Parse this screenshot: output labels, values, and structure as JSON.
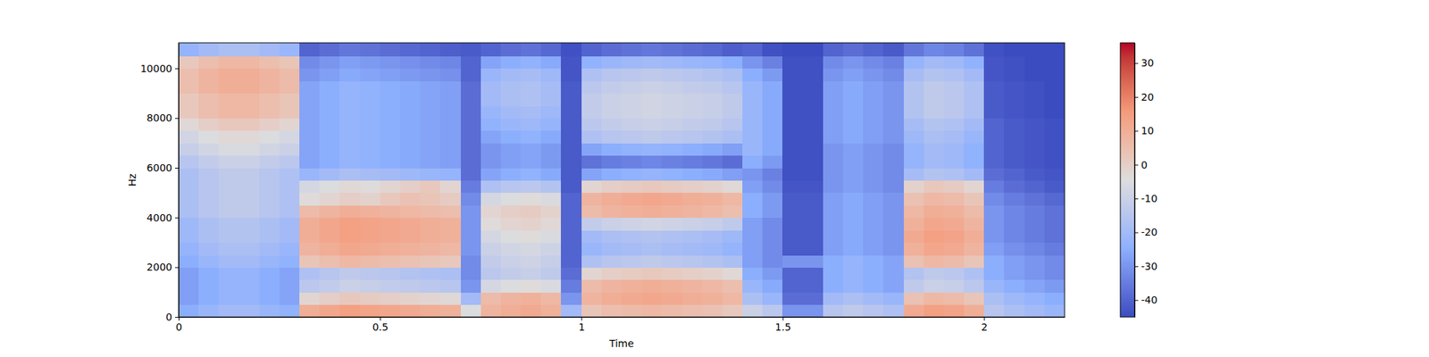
{
  "chart_data": {
    "type": "heatmap",
    "x_label": "Time",
    "y_label": "Hz",
    "xlim": [
      0,
      2.2
    ],
    "ylim": [
      0,
      11025
    ],
    "xticks": [
      0,
      0.5,
      1,
      1.5,
      2
    ],
    "yticks": [
      0,
      2000,
      4000,
      6000,
      8000,
      10000
    ],
    "x_edges": [
      0,
      0.05,
      0.1,
      0.15,
      0.2,
      0.25,
      0.3,
      0.35,
      0.4,
      0.45,
      0.5,
      0.55,
      0.6,
      0.65,
      0.7,
      0.75,
      0.8,
      0.85,
      0.9,
      0.95,
      1,
      1.05,
      1.1,
      1.15,
      1.2,
      1.25,
      1.3,
      1.35,
      1.4,
      1.45,
      1.5,
      1.55,
      1.6,
      1.65,
      1.7,
      1.75,
      1.8,
      1.85,
      1.9,
      1.95,
      2,
      2.05,
      2.1,
      2.15,
      2.2
    ],
    "y_edges": [
      0,
      500,
      1000,
      1500,
      2000,
      2500,
      3000,
      3500,
      4000,
      4500,
      5000,
      5500,
      6000,
      6500,
      7000,
      7500,
      8000,
      8500,
      9000,
      9500,
      10000,
      10500,
      11025
    ],
    "z": [
      [
        -25,
        -22,
        -20,
        -20,
        -22,
        -24,
        10,
        12,
        14,
        13,
        12,
        11,
        10,
        9,
        -5,
        8,
        10,
        11,
        9,
        -20,
        3,
        5,
        6,
        7,
        6,
        5,
        4,
        2,
        -10,
        -14,
        -30,
        -30,
        -15,
        -13,
        -15,
        -17,
        11,
        14,
        13,
        10,
        -15,
        -18,
        -20,
        -22
      ],
      [
        -28,
        -25,
        -23,
        -23,
        -25,
        -27,
        -2,
        0,
        2,
        1,
        0,
        -1,
        -2,
        -3,
        -20,
        6,
        8,
        9,
        7,
        -30,
        8,
        10,
        11,
        12,
        11,
        10,
        9,
        7,
        -18,
        -22,
        -38,
        -38,
        -20,
        -18,
        -20,
        -22,
        4,
        7,
        6,
        3,
        -18,
        -21,
        -23,
        -25
      ],
      [
        -28,
        -25,
        -23,
        -23,
        -25,
        -27,
        -14,
        -12,
        -10,
        -11,
        -12,
        -13,
        -14,
        -15,
        -30,
        -7,
        -5,
        -4,
        -6,
        -35,
        6,
        8,
        9,
        10,
        9,
        8,
        7,
        5,
        -22,
        -26,
        -40,
        -40,
        -25,
        -23,
        -25,
        -27,
        -13,
        -10,
        -11,
        -14,
        -22,
        -25,
        -27,
        -29
      ],
      [
        -28,
        -25,
        -23,
        -23,
        -25,
        -27,
        -17,
        -15,
        -13,
        -14,
        -15,
        -16,
        -17,
        -18,
        -32,
        -14,
        -12,
        -11,
        -13,
        -38,
        -2,
        0,
        1,
        2,
        1,
        0,
        -1,
        -3,
        -25,
        -29,
        -40,
        -40,
        -25,
        -23,
        -25,
        -27,
        -16,
        -13,
        -14,
        -17,
        -25,
        -28,
        -30,
        -32
      ],
      [
        -25,
        -22,
        -20,
        -20,
        -22,
        -24,
        3,
        5,
        7,
        6,
        5,
        4,
        3,
        2,
        -32,
        -12,
        -10,
        -9,
        -11,
        -40,
        -17,
        -15,
        -14,
        -13,
        -14,
        -15,
        -16,
        -18,
        -28,
        -32,
        -30,
        -30,
        -25,
        -23,
        -25,
        -27,
        4,
        7,
        6,
        3,
        -25,
        -28,
        -30,
        -32
      ],
      [
        -23,
        -20,
        -18,
        -18,
        -20,
        -22,
        8,
        10,
        12,
        11,
        10,
        9,
        8,
        7,
        -30,
        -10,
        -8,
        -7,
        -9,
        -40,
        -22,
        -20,
        -19,
        -18,
        -19,
        -20,
        -21,
        -23,
        -28,
        -32,
        -42,
        -42,
        -28,
        -26,
        -28,
        -30,
        9,
        12,
        11,
        8,
        -28,
        -31,
        -33,
        -35
      ],
      [
        -21,
        -18,
        -16,
        -16,
        -18,
        -20,
        10,
        12,
        14,
        13,
        12,
        11,
        10,
        9,
        -30,
        -7,
        -5,
        -4,
        -6,
        -40,
        -20,
        -18,
        -17,
        -16,
        -17,
        -18,
        -19,
        -21,
        -28,
        -32,
        -42,
        -42,
        -28,
        -26,
        -28,
        -30,
        11,
        14,
        13,
        10,
        -30,
        -33,
        -35,
        -37
      ],
      [
        -21,
        -18,
        -16,
        -16,
        -18,
        -20,
        10,
        12,
        14,
        13,
        12,
        11,
        10,
        9,
        -30,
        -4,
        -2,
        -1,
        -3,
        -40,
        -12,
        -10,
        -9,
        -8,
        -9,
        -10,
        -11,
        -13,
        -28,
        -32,
        -42,
        -42,
        -28,
        -26,
        -28,
        -30,
        9,
        12,
        11,
        8,
        -30,
        -33,
        -35,
        -37
      ],
      [
        -18,
        -15,
        -13,
        -13,
        -15,
        -17,
        6,
        8,
        10,
        9,
        8,
        7,
        6,
        5,
        -30,
        -2,
        0,
        1,
        -1,
        -40,
        6,
        8,
        9,
        10,
        9,
        8,
        7,
        5,
        -25,
        -29,
        -42,
        -42,
        -28,
        -26,
        -28,
        -30,
        7,
        10,
        9,
        6,
        -30,
        -33,
        -35,
        -37
      ],
      [
        -18,
        -15,
        -13,
        -13,
        -15,
        -17,
        -4,
        -2,
        0,
        -1,
        2,
        4,
        3,
        1,
        -32,
        -7,
        -5,
        -4,
        -6,
        -40,
        8,
        10,
        11,
        12,
        11,
        10,
        9,
        7,
        -25,
        -29,
        -42,
        -42,
        -28,
        -26,
        -28,
        -30,
        4,
        7,
        6,
        3,
        -32,
        -35,
        -37,
        -39
      ],
      [
        -18,
        -15,
        -13,
        -13,
        -15,
        -17,
        -7,
        -5,
        -3,
        -4,
        -2,
        0,
        2,
        -2,
        -35,
        -17,
        -15,
        -14,
        -16,
        -42,
        -2,
        0,
        1,
        2,
        1,
        0,
        -1,
        -3,
        -28,
        -32,
        -43,
        -43,
        -30,
        -28,
        -30,
        -32,
        -1,
        2,
        1,
        -2,
        -35,
        -38,
        -40,
        -42
      ],
      [
        -18,
        -15,
        -13,
        -13,
        -15,
        -17,
        -22,
        -20,
        -18,
        -19,
        -20,
        -21,
        -22,
        -23,
        -38,
        -27,
        -25,
        -24,
        -26,
        -42,
        -27,
        -25,
        -24,
        -23,
        -24,
        -25,
        -26,
        -28,
        -30,
        -34,
        -44,
        -44,
        -30,
        -28,
        -30,
        -32,
        -19,
        -16,
        -17,
        -20,
        -38,
        -40,
        -42,
        -43
      ],
      [
        -15,
        -12,
        -10,
        -10,
        -12,
        -14,
        -27,
        -25,
        -23,
        -24,
        -25,
        -26,
        -27,
        -28,
        -38,
        -30,
        -28,
        -27,
        -29,
        -42,
        -37,
        -35,
        -34,
        -33,
        -34,
        -35,
        -36,
        -38,
        -25,
        -29,
        -44,
        -44,
        -30,
        -28,
        -30,
        -32,
        -23,
        -20,
        -21,
        -24,
        -40,
        -42,
        -43,
        -44
      ],
      [
        -11,
        -8,
        -6,
        -6,
        -8,
        -10,
        -27,
        -25,
        -23,
        -24,
        -25,
        -26,
        -27,
        -28,
        -38,
        -30,
        -28,
        -27,
        -29,
        -42,
        -27,
        -25,
        -24,
        -23,
        -24,
        -25,
        -26,
        -28,
        -22,
        -26,
        -44,
        -44,
        -30,
        -28,
        -30,
        -32,
        -23,
        -20,
        -21,
        -24,
        -40,
        -42,
        -43,
        -44
      ],
      [
        -8,
        -5,
        -3,
        -3,
        -5,
        -7,
        -27,
        -25,
        -23,
        -24,
        -25,
        -26,
        -27,
        -28,
        -38,
        -27,
        -25,
        -24,
        -26,
        -42,
        -17,
        -15,
        -14,
        -13,
        -14,
        -15,
        -16,
        -18,
        -22,
        -26,
        -44,
        -44,
        -28,
        -26,
        -28,
        -30,
        -21,
        -18,
        -19,
        -22,
        -40,
        -42,
        -43,
        -44
      ],
      [
        -3,
        0,
        2,
        2,
        0,
        -2,
        -27,
        -25,
        -23,
        -24,
        -25,
        -26,
        -27,
        -28,
        -38,
        -24,
        -22,
        -21,
        -23,
        -42,
        -14,
        -12,
        -11,
        -10,
        -11,
        -12,
        -13,
        -15,
        -22,
        -26,
        -44,
        -44,
        -28,
        -26,
        -28,
        -30,
        -19,
        -16,
        -17,
        -20,
        -40,
        -42,
        -43,
        -44
      ],
      [
        2,
        5,
        7,
        7,
        5,
        3,
        -27,
        -25,
        -23,
        -24,
        -25,
        -26,
        -27,
        -28,
        -38,
        -22,
        -20,
        -19,
        -21,
        -42,
        -12,
        -10,
        -9,
        -8,
        -9,
        -10,
        -11,
        -13,
        -22,
        -26,
        -44,
        -44,
        -28,
        -26,
        -28,
        -30,
        -16,
        -13,
        -14,
        -17,
        -42,
        -43,
        -44,
        -45
      ],
      [
        2,
        5,
        7,
        7,
        5,
        3,
        -27,
        -25,
        -23,
        -24,
        -25,
        -26,
        -27,
        -28,
        -38,
        -20,
        -18,
        -17,
        -19,
        -42,
        -12,
        -10,
        -9,
        -8,
        -9,
        -10,
        -11,
        -13,
        -22,
        -26,
        -44,
        -44,
        -28,
        -26,
        -28,
        -30,
        -16,
        -13,
        -14,
        -17,
        -42,
        -43,
        -44,
        -45
      ],
      [
        5,
        8,
        10,
        10,
        8,
        6,
        -27,
        -25,
        -23,
        -24,
        -25,
        -26,
        -27,
        -28,
        -38,
        -20,
        -18,
        -17,
        -19,
        -42,
        -14,
        -12,
        -11,
        -10,
        -11,
        -12,
        -13,
        -15,
        -22,
        -26,
        -44,
        -44,
        -28,
        -26,
        -28,
        -30,
        -16,
        -13,
        -14,
        -17,
        -42,
        -43,
        -44,
        -45
      ],
      [
        5,
        8,
        10,
        10,
        8,
        6,
        -30,
        -28,
        -26,
        -27,
        -28,
        -29,
        -30,
        -31,
        -40,
        -22,
        -20,
        -19,
        -21,
        -43,
        -17,
        -15,
        -14,
        -13,
        -14,
        -15,
        -16,
        -18,
        -25,
        -29,
        -44,
        -44,
        -30,
        -28,
        -30,
        -32,
        -19,
        -16,
        -17,
        -20,
        -43,
        -44,
        -45,
        -45
      ],
      [
        2,
        5,
        7,
        7,
        5,
        3,
        -32,
        -30,
        -28,
        -29,
        -30,
        -31,
        -32,
        -33,
        -40,
        -27,
        -25,
        -24,
        -26,
        -43,
        -24,
        -22,
        -21,
        -20,
        -21,
        -22,
        -23,
        -25,
        -30,
        -34,
        -44,
        -44,
        -32,
        -30,
        -32,
        -34,
        -23,
        -20,
        -21,
        -24,
        -43,
        -44,
        -45,
        -45
      ],
      [
        -23,
        -20,
        -18,
        -18,
        -20,
        -22,
        -40,
        -38,
        -36,
        -37,
        -38,
        -39,
        -40,
        -41,
        -42,
        -40,
        -38,
        -37,
        -39,
        -44,
        -40,
        -38,
        -37,
        -36,
        -37,
        -38,
        -39,
        -41,
        -40,
        -44,
        -45,
        -45,
        -40,
        -38,
        -40,
        -42,
        -36,
        -33,
        -34,
        -37,
        -44,
        -45,
        -45,
        -45
      ]
    ],
    "colorbar": {
      "range": [
        -45,
        36
      ],
      "ticks": [
        -40,
        -30,
        -20,
        -10,
        0,
        10,
        20,
        30
      ]
    }
  }
}
